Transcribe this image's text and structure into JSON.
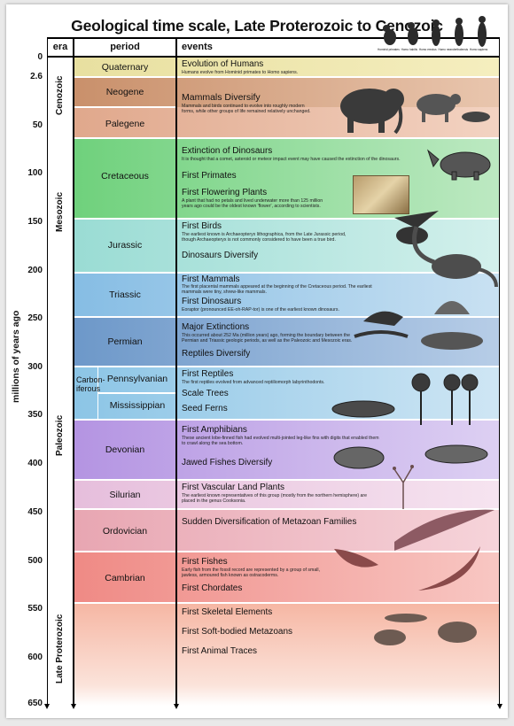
{
  "title": "Geological time scale, Late Proterozoic to Cenozoic",
  "headers": {
    "era": "era",
    "period": "period",
    "events": "events"
  },
  "axis_label": "millions of years ago",
  "ticks": [
    "0",
    "2.6",
    "50",
    "100",
    "150",
    "200",
    "250",
    "300",
    "350",
    "400",
    "450",
    "500",
    "550",
    "600",
    "650"
  ],
  "eras": [
    "Cenozoic",
    "Mesozoic",
    "Paleozoic",
    "Late Proterozoic"
  ],
  "carboniferous": [
    "Carbon-",
    "iferous"
  ],
  "periods": [
    "Quaternary",
    "Neogene",
    "Palegene",
    "Cretaceous",
    "Jurassic",
    "Triassic",
    "Permian",
    "Pennsylvanian",
    "Mississippian",
    "Devonian",
    "Silurian",
    "Ordovician",
    "Cambrian"
  ],
  "events": {
    "humans": "Evolution of Humans",
    "humans_desc": "Humans evolve from Hominid primates to Homo sapiens.",
    "mammals": "Mammals Diversify",
    "mammals_desc1": "Mammals and birds continued to evolve into roughly modern",
    "mammals_desc2": "forms, while other groups of life remained relatively unchanged.",
    "dino_ext": "Extinction of Dinosaurs",
    "dino_ext_desc": "It is thought that a comet, asteroid or meteor impact event may have caused the extinction of the dinosaurs.",
    "primates": "First Primates",
    "flowering": "First Flowering Plants",
    "flowering_desc1": "A plant that had no petals and lived underwater more than 125 million",
    "flowering_desc2": "years ago could be the oldest known 'flower', according to scientists.",
    "birds": "First Birds",
    "birds_desc1": "The earliest known is Archaeopteryx lithographica, from the Late Jurassic period,",
    "birds_desc2": "though Archaeopteryx is not commonly considered to have been a true bird.",
    "dino_div": "Dinosaurs Diversify",
    "fmammals": "First Mammals",
    "fmammals_desc1": "The first placental mammals appeared at the beginning of the Cretaceous period. The earliest",
    "fmammals_desc2": "mammals were tiny, shrew-like mammals.",
    "fdinos": "First Dinosaurs",
    "fdinos_desc": "Eoraptor (pronounced EE-oh-RAP-tor) is one of the earliest known dinosaurs.",
    "major_ext": "Major Extinctions",
    "major_ext_desc1": "This occurred about 252 Ma (million years) ago, forming the boundary between the",
    "major_ext_desc2": "Permian and Triassic geologic periods, as well as the Paleozoic and Mesozoic eras.",
    "reptiles_div": "Reptiles Diversify",
    "freptiles": "First Reptiles",
    "freptiles_desc": "The first reptiles evolved from advanced reptiliomorph labyrinthodonts.",
    "scale_trees": "Scale Trees",
    "seed_ferns": "Seed Ferns",
    "amphibians": "First Amphibians",
    "amphibians_desc1": "These ancient lobe-finned fish had evolved multi-jointed leg-like fins with digits that enabled them",
    "amphibians_desc2": "to crawl along the sea bottom.",
    "jawed": "Jawed Fishes Diversify",
    "land_plants": "First Vascular Land Plants",
    "land_plants_desc1": "The earliest known representatives of this group (mostly from the northern hemisphere) are",
    "land_plants_desc2": "placed in the genus Cooksonia.",
    "metazoan": "Sudden Diversification of Metazoan Families",
    "fishes": "First Fishes",
    "fishes_desc1": "Early fish from the fossil record are represented by a group of small,",
    "fishes_desc2": "jawless, armoured fish known as ostracoderms.",
    "chordates": "First Chordates",
    "skeletal": "First Skeletal Elements",
    "soft": "First Soft-bodied Metazoans",
    "traces": "First Animal Traces"
  },
  "human_labels": [
    "Hominid primates",
    "Homo habilis",
    "Homo erectus",
    "Homo neanderthalensis",
    "Homo sapiens"
  ],
  "colors": {
    "quaternary": "#f1e9a8",
    "neogene": "#d9a98a",
    "palegene": "#e6b8a0",
    "cretaceous": "#93dc9c",
    "jurassic": "#b4e5e0",
    "triassic": "#a5cde8",
    "permian": "#8cb0d6",
    "carboniferous": "#a7d2ea",
    "devonian": "#c5aee8",
    "silurian": "#edcfe4",
    "ordovician": "#eebcc4",
    "cambrian": "#f3a4a0",
    "proterozoic": "#f5c2b2"
  }
}
